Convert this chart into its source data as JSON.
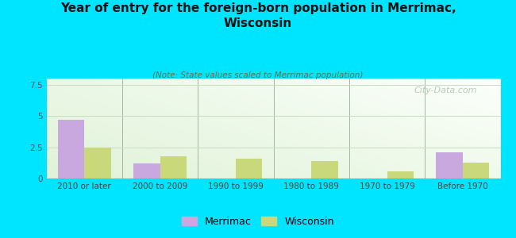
{
  "title": "Year of entry for the foreign-born population in Merrimac,\nWisconsin",
  "subtitle": "(Note: State values scaled to Merrimac population)",
  "categories": [
    "2010 or later",
    "2000 to 2009",
    "1990 to 1999",
    "1980 to 1989",
    "1970 to 1979",
    "Before 1970"
  ],
  "merrimac_values": [
    4.7,
    1.2,
    0.0,
    0.0,
    0.0,
    2.1
  ],
  "wisconsin_values": [
    2.5,
    1.75,
    1.6,
    1.4,
    0.55,
    1.3
  ],
  "merrimac_color": "#c9a8e0",
  "wisconsin_color": "#c8d87a",
  "background_color": "#00e5ff",
  "ylim": [
    0,
    8
  ],
  "yticks": [
    0,
    2.5,
    5,
    7.5
  ],
  "bar_width": 0.35,
  "title_fontsize": 11,
  "subtitle_fontsize": 7.5,
  "tick_fontsize": 7.5,
  "legend_fontsize": 9,
  "watermark_text": "City-Data.com",
  "watermark_color": "#aac4aa",
  "grid_color": "#c8dcc0",
  "axis_line_color": "#a0b8a0"
}
